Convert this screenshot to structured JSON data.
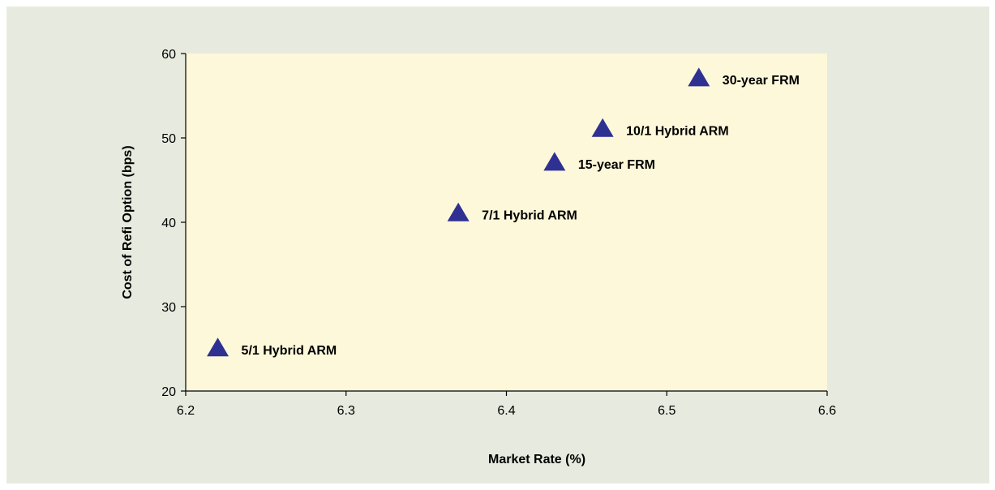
{
  "colors": {
    "background_panel": "#e7ebdf",
    "plot_area": "#fdf8d9",
    "marker": "#2e3192",
    "axis": "#000000"
  },
  "chart_data": {
    "type": "scatter",
    "title": "",
    "xlabel": "Market Rate (%)",
    "ylabel": "Cost of Refi Option (bps)",
    "xlim": [
      6.2,
      6.6
    ],
    "ylim": [
      20,
      60
    ],
    "x_ticks": [
      "6.2",
      "6.3",
      "6.4",
      "6.5",
      "6.6"
    ],
    "y_ticks": [
      "20",
      "30",
      "40",
      "50",
      "60"
    ],
    "grid": false,
    "marker": "triangle",
    "points": [
      {
        "label": "5/1 Hybrid ARM",
        "x": 6.22,
        "y": 25
      },
      {
        "label": "7/1 Hybrid ARM",
        "x": 6.37,
        "y": 41
      },
      {
        "label": "15-year FRM",
        "x": 6.43,
        "y": 47
      },
      {
        "label": "10/1 Hybrid ARM",
        "x": 6.46,
        "y": 51
      },
      {
        "label": "30-year FRM",
        "x": 6.52,
        "y": 57
      }
    ]
  }
}
